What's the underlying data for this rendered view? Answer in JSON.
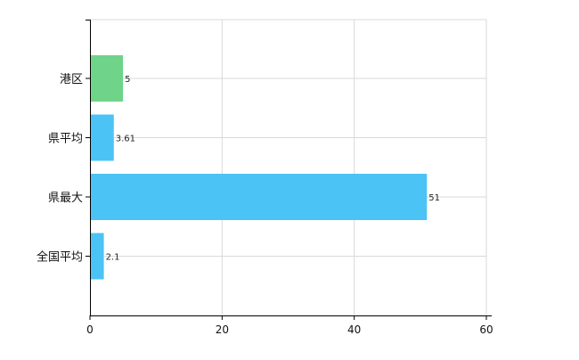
{
  "chart_data": {
    "type": "bar",
    "orientation": "horizontal",
    "title": "",
    "xlabel": "",
    "ylabel": "",
    "categories": [
      "港区",
      "県平均",
      "県最大",
      "全国平均"
    ],
    "values": [
      5,
      3.61,
      51,
      2.1
    ],
    "value_labels": [
      "5",
      "3.61",
      "51",
      "2.1"
    ],
    "bar_colors": [
      "#6fd38a",
      "#4cc3f5",
      "#4cc3f5",
      "#4cc3f5"
    ],
    "xlim": [
      0,
      60
    ],
    "xticks": [
      0,
      20,
      40,
      60
    ],
    "xtick_labels": [
      "0",
      "20",
      "40",
      "60"
    ],
    "grid": true,
    "legend": "none"
  }
}
